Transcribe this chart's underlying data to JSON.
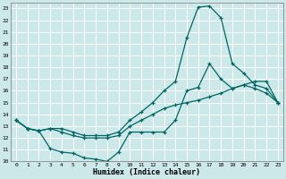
{
  "xlabel": "Humidex (Indice chaleur)",
  "background_color": "#cde8e8",
  "grid_color": "#ffffff",
  "line_color": "#006666",
  "xlim": [
    -0.5,
    23.5
  ],
  "ylim": [
    10,
    23.5
  ],
  "yticks": [
    10,
    11,
    12,
    13,
    14,
    15,
    16,
    17,
    18,
    19,
    20,
    21,
    22,
    23
  ],
  "xticks": [
    0,
    1,
    2,
    3,
    4,
    5,
    6,
    7,
    8,
    9,
    10,
    11,
    12,
    13,
    14,
    15,
    16,
    17,
    18,
    19,
    20,
    21,
    22,
    23
  ],
  "curve_bottom_x": [
    0,
    1,
    2,
    3,
    4,
    5,
    6,
    7,
    8,
    9,
    10,
    11,
    12,
    13,
    14,
    15,
    16,
    17,
    18,
    19,
    20,
    21,
    22,
    23
  ],
  "curve_bottom_y": [
    13.5,
    12.8,
    12.6,
    11.1,
    10.8,
    10.7,
    10.3,
    10.2,
    10.0,
    10.8,
    12.5,
    12.5,
    12.5,
    12.5,
    13.5,
    16.0,
    16.3,
    18.3,
    17.0,
    16.2,
    16.5,
    16.2,
    15.8,
    15.0
  ],
  "curve_top_x": [
    0,
    1,
    2,
    3,
    4,
    5,
    6,
    7,
    8,
    9,
    10,
    11,
    12,
    13,
    14,
    15,
    16,
    17,
    18,
    19,
    20,
    21,
    22,
    23
  ],
  "curve_top_y": [
    13.5,
    12.8,
    12.6,
    12.8,
    12.8,
    12.5,
    12.2,
    12.2,
    12.2,
    12.5,
    13.5,
    14.2,
    15.0,
    16.0,
    16.8,
    20.5,
    23.1,
    23.2,
    22.2,
    18.3,
    17.5,
    16.5,
    16.2,
    15.0
  ],
  "curve_diag_x": [
    0,
    1,
    2,
    3,
    4,
    5,
    6,
    7,
    8,
    9,
    10,
    11,
    12,
    13,
    14,
    15,
    16,
    17,
    18,
    19,
    20,
    21,
    22,
    23
  ],
  "curve_diag_y": [
    13.5,
    12.8,
    12.6,
    12.8,
    12.5,
    12.2,
    12.0,
    12.0,
    12.0,
    12.2,
    13.0,
    13.5,
    14.0,
    14.5,
    14.8,
    15.0,
    15.2,
    15.5,
    15.8,
    16.2,
    16.5,
    16.8,
    16.8,
    15.0
  ]
}
